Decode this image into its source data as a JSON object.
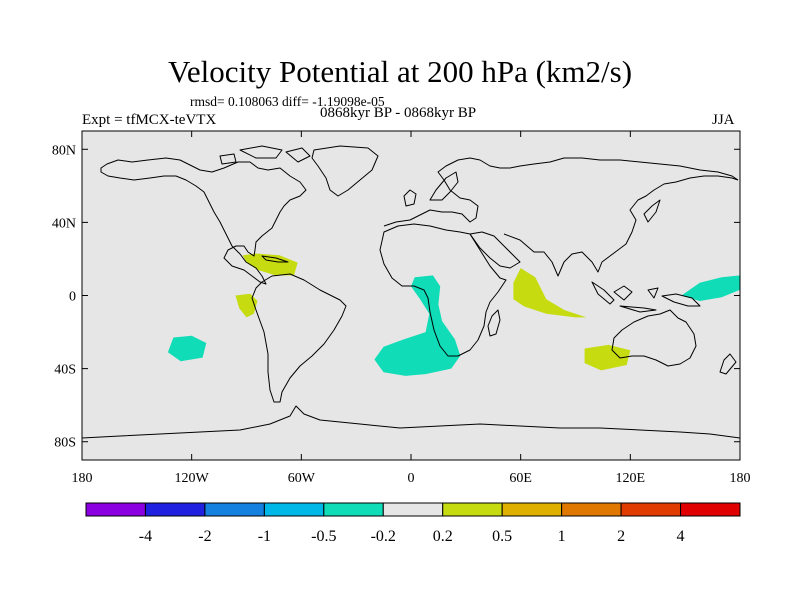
{
  "title": "Velocity Potential at 200 hPa (km2/s)",
  "stats": "rmsd= 0.108063 diff= -1.19098e-05",
  "left_label": "Expt = tfMCX-teVTX",
  "center_label": "0868kyr BP - 0868kyr BP",
  "season": "JJA",
  "map_background": "#e6e6e6",
  "y_ticks": [
    {
      "value": 80,
      "label": "80N"
    },
    {
      "value": 40,
      "label": "40N"
    },
    {
      "value": 0,
      "label": "0"
    },
    {
      "value": -40,
      "label": "40S"
    },
    {
      "value": -80,
      "label": "80S"
    }
  ],
  "x_ticks": [
    {
      "value": -180,
      "label": "180"
    },
    {
      "value": -120,
      "label": "120W"
    },
    {
      "value": -60,
      "label": "60W"
    },
    {
      "value": 0,
      "label": "0"
    },
    {
      "value": 60,
      "label": "60E"
    },
    {
      "value": 120,
      "label": "120E"
    },
    {
      "value": 180,
      "label": "180"
    }
  ],
  "colorbar": {
    "colors": [
      "#8a00e0",
      "#2020e0",
      "#1480e0",
      "#00b8e8",
      "#10dcb8",
      "#e6e6e6",
      "#c6dc10",
      "#e0b000",
      "#e07800",
      "#e03c00",
      "#e00000"
    ],
    "labels": [
      "-4",
      "-2",
      "-1",
      "-0.5",
      "-0.2",
      "0.2",
      "0.5",
      "1",
      "2",
      "4"
    ]
  },
  "anomalies": [
    {
      "name": "caribbean-positive",
      "color": "#c6dc10",
      "points": [
        [
          -92,
          22
        ],
        [
          -85,
          23
        ],
        [
          -72,
          22
        ],
        [
          -62,
          18
        ],
        [
          -64,
          11
        ],
        [
          -74,
          11
        ],
        [
          -84,
          14
        ],
        [
          -90,
          18
        ]
      ]
    },
    {
      "name": "east-pacific-positive",
      "color": "#c6dc10",
      "points": [
        [
          -96,
          0
        ],
        [
          -88,
          1
        ],
        [
          -84,
          -3
        ],
        [
          -86,
          -10
        ],
        [
          -90,
          -12
        ],
        [
          -94,
          -7
        ]
      ]
    },
    {
      "name": "south-pacific-negative",
      "color": "#10dcb8",
      "points": [
        [
          -130,
          -23
        ],
        [
          -120,
          -22
        ],
        [
          -112,
          -26
        ],
        [
          -114,
          -34
        ],
        [
          -126,
          -36
        ],
        [
          -133,
          -31
        ]
      ]
    },
    {
      "name": "africa-atlantic-negative",
      "color": "#10dcb8",
      "points": [
        [
          2,
          10
        ],
        [
          12,
          11
        ],
        [
          16,
          5
        ],
        [
          15,
          -5
        ],
        [
          17,
          -14
        ],
        [
          24,
          -24
        ],
        [
          27,
          -33
        ],
        [
          22,
          -40
        ],
        [
          8,
          -43
        ],
        [
          -3,
          -44
        ],
        [
          -15,
          -42
        ],
        [
          -20,
          -35
        ],
        [
          -15,
          -28
        ],
        [
          -4,
          -24
        ],
        [
          8,
          -20
        ],
        [
          10,
          -10
        ],
        [
          5,
          -2
        ],
        [
          0,
          5
        ]
      ]
    },
    {
      "name": "indian-ocean-positive",
      "color": "#c6dc10",
      "points": [
        [
          60,
          15
        ],
        [
          68,
          10
        ],
        [
          74,
          -2
        ],
        [
          84,
          -8
        ],
        [
          96,
          -12
        ],
        [
          90,
          -12
        ],
        [
          74,
          -10
        ],
        [
          62,
          -6
        ],
        [
          56,
          -2
        ],
        [
          56,
          7
        ]
      ]
    },
    {
      "name": "south-indian-positive",
      "color": "#c6dc10",
      "points": [
        [
          95,
          -29
        ],
        [
          108,
          -27
        ],
        [
          120,
          -30
        ],
        [
          118,
          -38
        ],
        [
          104,
          -41
        ],
        [
          95,
          -37
        ]
      ]
    },
    {
      "name": "west-pacific-negative",
      "color": "#10dcb8",
      "points": [
        [
          148,
          0
        ],
        [
          158,
          7
        ],
        [
          170,
          10
        ],
        [
          180,
          11
        ],
        [
          182,
          4
        ],
        [
          170,
          -1
        ],
        [
          158,
          -3
        ]
      ]
    }
  ]
}
